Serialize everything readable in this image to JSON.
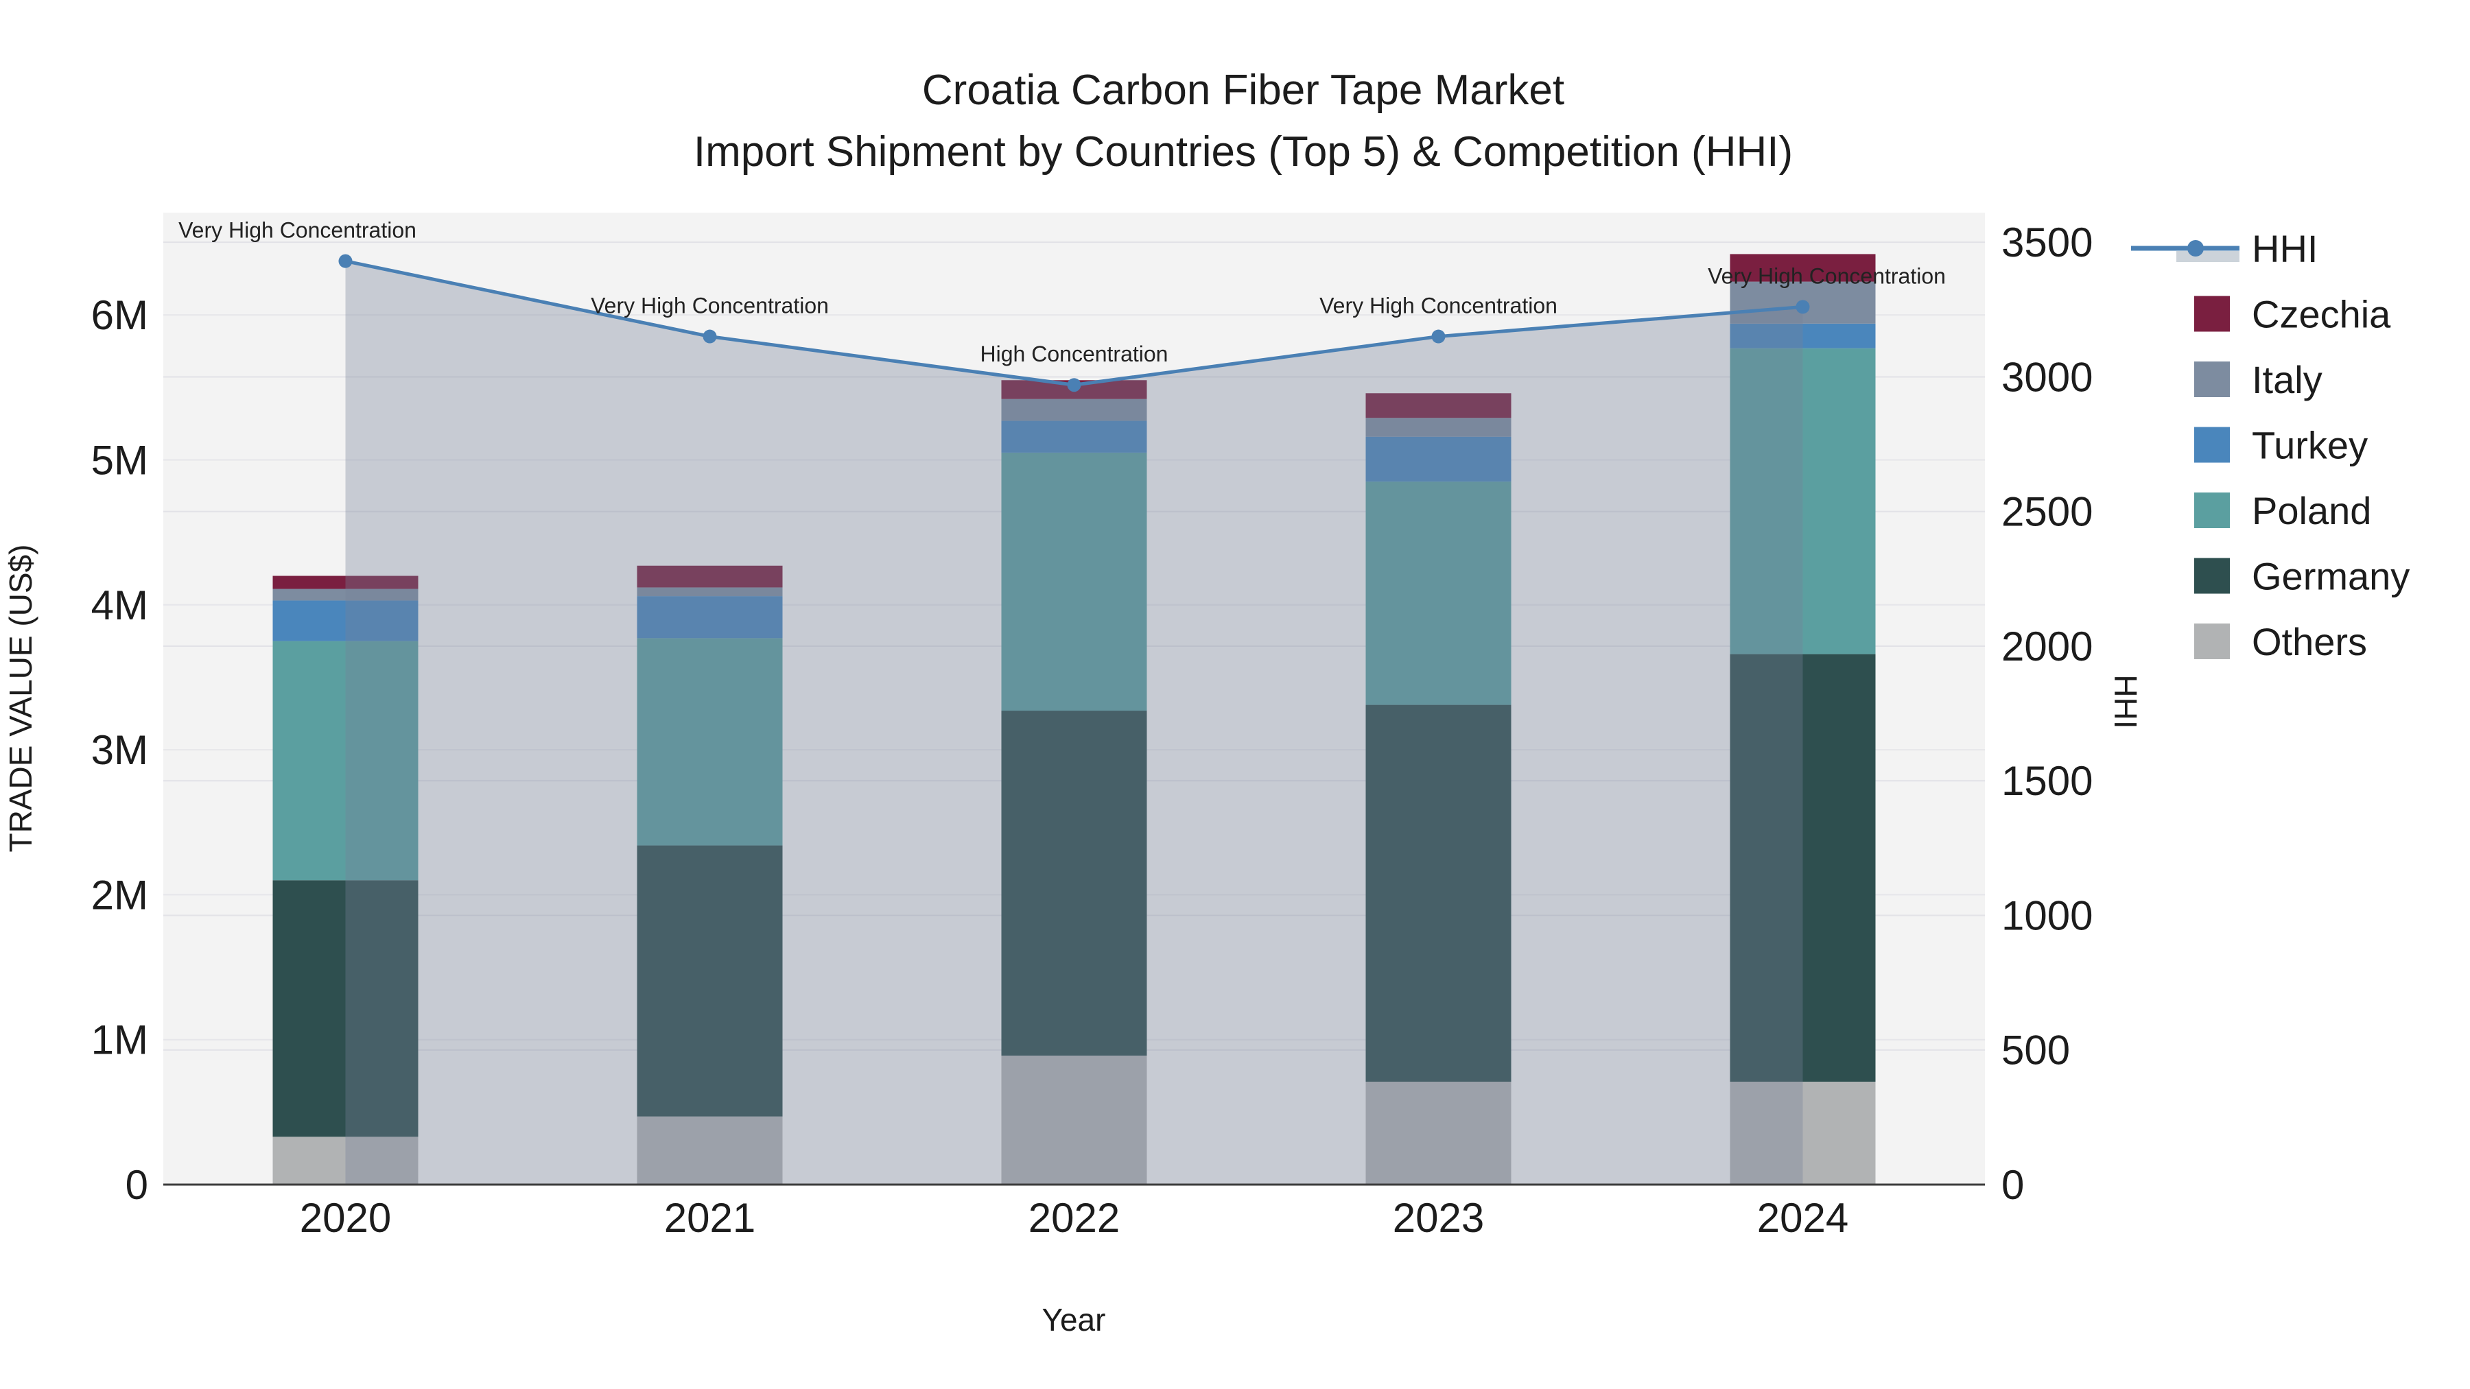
{
  "title": {
    "line1": "Croatia Carbon Fiber Tape Market",
    "line2": "Import Shipment by Countries (Top 5) & Competition (HHI)"
  },
  "axes": {
    "x": {
      "title": "Year",
      "categories": [
        "2020",
        "2021",
        "2022",
        "2023",
        "2024"
      ]
    },
    "left": {
      "title": "TRADE VALUE (US$)",
      "ticks": [
        {
          "label": "0",
          "value": 0
        },
        {
          "label": "1M",
          "value": 1000000
        },
        {
          "label": "2M",
          "value": 2000000
        },
        {
          "label": "3M",
          "value": 3000000
        },
        {
          "label": "4M",
          "value": 4000000
        },
        {
          "label": "5M",
          "value": 5000000
        },
        {
          "label": "6M",
          "value": 6000000
        }
      ],
      "max": 6706000
    },
    "right": {
      "title": "HHI",
      "ticks": [
        {
          "label": "0",
          "value": 0
        },
        {
          "label": "500",
          "value": 500
        },
        {
          "label": "1000",
          "value": 1000
        },
        {
          "label": "1500",
          "value": 1500
        },
        {
          "label": "2000",
          "value": 2000
        },
        {
          "label": "2500",
          "value": 2500
        },
        {
          "label": "3000",
          "value": 3000
        },
        {
          "label": "3500",
          "value": 3500
        }
      ],
      "max": 3610
    }
  },
  "legend": {
    "items": [
      {
        "label": "HHI",
        "type": "line",
        "color": "#4a80b4",
        "band_color": "#ccd3da"
      },
      {
        "label": "Czechia",
        "type": "swatch",
        "color": "#7a1f40"
      },
      {
        "label": "Italy",
        "type": "swatch",
        "color": "#7d8ca0"
      },
      {
        "label": "Turkey",
        "type": "swatch",
        "color": "#4a86bc"
      },
      {
        "label": "Poland",
        "type": "swatch",
        "color": "#5b9fa0"
      },
      {
        "label": "Germany",
        "type": "swatch",
        "color": "#2e4f4f"
      },
      {
        "label": "Others",
        "type": "swatch",
        "color": "#b1b3b4"
      }
    ]
  },
  "chart_data": {
    "type": "bar",
    "subtype": "stacked-bars-with-hhi-line",
    "title": "Croatia Carbon Fiber Tape Market — Import Shipment by Countries (Top 5) & Competition (HHI)",
    "xlabel": "Year",
    "ylabel_left": "TRADE VALUE (US$)",
    "ylabel_right": "HHI",
    "categories": [
      "2020",
      "2021",
      "2022",
      "2023",
      "2024"
    ],
    "series": [
      {
        "name": "Others",
        "color": "#b1b3b4",
        "values": [
          330000,
          470000,
          890000,
          710000,
          710000
        ]
      },
      {
        "name": "Germany",
        "color": "#2e4f4f",
        "values": [
          1770000,
          1870000,
          2380000,
          2600000,
          2950000
        ]
      },
      {
        "name": "Poland",
        "color": "#5b9fa0",
        "values": [
          1650000,
          1430000,
          1780000,
          1540000,
          2110000
        ]
      },
      {
        "name": "Turkey",
        "color": "#4a86bc",
        "values": [
          280000,
          290000,
          220000,
          310000,
          170000
        ]
      },
      {
        "name": "Italy",
        "color": "#7d8ca0",
        "values": [
          80000,
          60000,
          150000,
          130000,
          290000
        ]
      },
      {
        "name": "Czechia",
        "color": "#7a1f40",
        "values": [
          90000,
          150000,
          130000,
          170000,
          190000
        ]
      }
    ],
    "bar_totals": [
      4200000,
      4270000,
      5550000,
      5460000,
      6420000
    ],
    "hhi_line": {
      "name": "HHI",
      "color": "#4a80b4",
      "area_color": "rgba(118,130,153,0.35)",
      "values": [
        3430,
        3150,
        2970,
        3150,
        3260
      ],
      "annotations": [
        {
          "text": "Very High Concentration",
          "dx": -70
        },
        {
          "text": "Very High Concentration",
          "dx": 0
        },
        {
          "text": "High Concentration",
          "dx": 0
        },
        {
          "text": "Very High Concentration",
          "dx": 0
        },
        {
          "text": "Very High Concentration",
          "dx": 35
        }
      ]
    },
    "ylim_left": [
      0,
      6706000
    ],
    "ylim_right": [
      0,
      3610
    ],
    "grid": true,
    "legend_position": "right",
    "plot_background": "#f3f3f3"
  }
}
